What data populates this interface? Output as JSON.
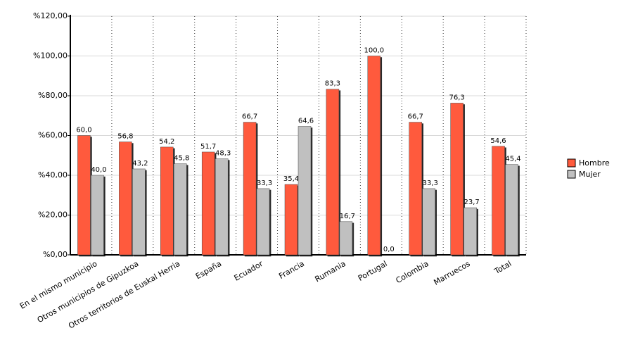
{
  "chart_data": {
    "type": "bar",
    "categories": [
      "En el mismo municipio",
      "Otros municipios de Gipuzkoa",
      "Otros territorios de Euskal Herria",
      "España",
      "Ecuador",
      "Francia",
      "Rumania",
      "Portugal",
      "Colombia",
      "Marruecos",
      "Total"
    ],
    "series": [
      {
        "name": "Hombre",
        "color": "#ff5a3c",
        "values": [
          60,
          56.8,
          54.2,
          51.7,
          66.7,
          35.4,
          83.3,
          100,
          66.7,
          76.3,
          54.6
        ],
        "value_labels": [
          "60,0",
          "56,8",
          "54,2",
          "51,7",
          "66,7",
          "35,4",
          "83,3",
          "100,0",
          "66,7",
          "76,3",
          "54,6"
        ]
      },
      {
        "name": "Mujer",
        "color": "#c0c0c0",
        "values": [
          40,
          43.2,
          45.8,
          48.3,
          33.3,
          64.6,
          16.7,
          0,
          33.3,
          23.7,
          45.4
        ],
        "value_labels": [
          "40,0",
          "43,2",
          "45,8",
          "48,3",
          "33,3",
          "64,6",
          "16,7",
          "0,0",
          "33,3",
          "23,7",
          "45,4"
        ]
      }
    ],
    "ylim": [
      0,
      120
    ],
    "yticks": [
      {
        "value": 0,
        "label": "%0,00"
      },
      {
        "value": 20,
        "label": "%20,00"
      },
      {
        "value": 40,
        "label": "%40,00"
      },
      {
        "value": 60,
        "label": "%60,00"
      },
      {
        "value": 80,
        "label": "%80,00"
      },
      {
        "value": 100,
        "label": "%100,00"
      },
      {
        "value": 120,
        "label": "%120,00"
      }
    ],
    "grid": true,
    "legend": "right"
  }
}
